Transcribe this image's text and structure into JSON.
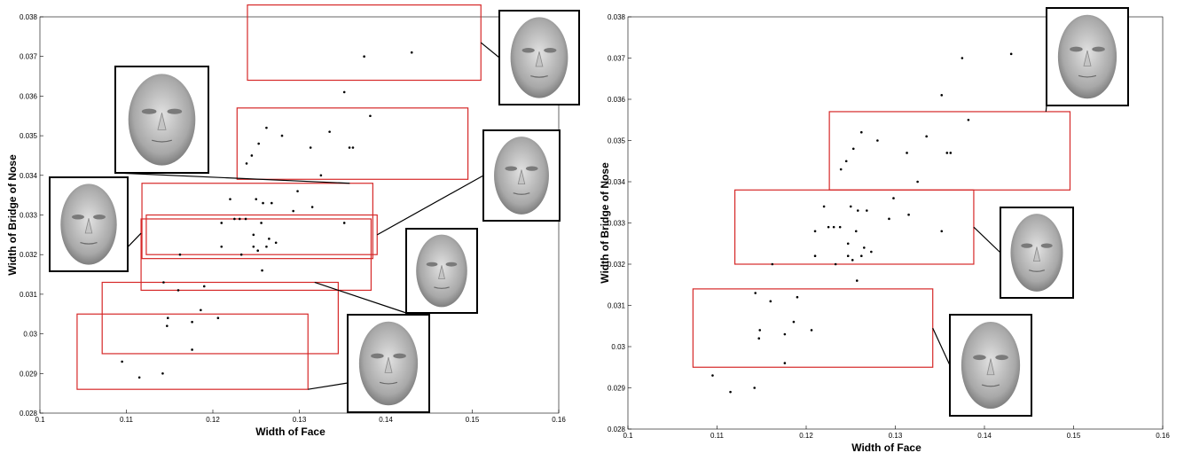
{
  "colors": {
    "frame": "#000000",
    "highlight_box": "#d62828",
    "point": "#000000",
    "face_bg": "#ffffff",
    "face_skin": "#a8a8a8"
  },
  "chart_data": [
    {
      "type": "scatter",
      "title": "",
      "xlabel": "Width of Face",
      "ylabel": "Width of Bridge of Nose",
      "xlim": [
        0.1,
        0.16
      ],
      "ylim": [
        0.028,
        0.038
      ],
      "x_ticks": [
        "0.1",
        "0.11",
        "0.12",
        "0.13",
        "0.14",
        "0.15",
        "0.16"
      ],
      "y_ticks": [
        "0.028",
        "0.029",
        "0.03",
        "0.031",
        "0.032",
        "0.033",
        "0.034",
        "0.035",
        "0.036",
        "0.037",
        "0.038"
      ],
      "grid": false,
      "points": [
        [
          0.1095,
          0.0293
        ],
        [
          0.1115,
          0.0289
        ],
        [
          0.1142,
          0.029
        ],
        [
          0.1143,
          0.0313
        ],
        [
          0.1148,
          0.0304
        ],
        [
          0.1147,
          0.0302
        ],
        [
          0.116,
          0.0311
        ],
        [
          0.1176,
          0.0296
        ],
        [
          0.1176,
          0.0303
        ],
        [
          0.1186,
          0.0306
        ],
        [
          0.119,
          0.0312
        ],
        [
          0.1206,
          0.0304
        ],
        [
          0.1162,
          0.032
        ],
        [
          0.121,
          0.0328
        ],
        [
          0.121,
          0.0322
        ],
        [
          0.122,
          0.0334
        ],
        [
          0.1225,
          0.0329
        ],
        [
          0.1231,
          0.0329
        ],
        [
          0.1233,
          0.032
        ],
        [
          0.1238,
          0.0329
        ],
        [
          0.1247,
          0.0325
        ],
        [
          0.1247,
          0.0322
        ],
        [
          0.125,
          0.0334
        ],
        [
          0.1252,
          0.0321
        ],
        [
          0.1256,
          0.0328
        ],
        [
          0.1258,
          0.0333
        ],
        [
          0.1257,
          0.0316
        ],
        [
          0.1262,
          0.0322
        ],
        [
          0.1265,
          0.0324
        ],
        [
          0.1268,
          0.0333
        ],
        [
          0.1273,
          0.0323
        ],
        [
          0.1293,
          0.0331
        ],
        [
          0.1298,
          0.0336
        ],
        [
          0.1315,
          0.0332
        ],
        [
          0.1352,
          0.0328
        ],
        [
          0.1239,
          0.0343
        ],
        [
          0.1245,
          0.0345
        ],
        [
          0.1253,
          0.0348
        ],
        [
          0.1262,
          0.0352
        ],
        [
          0.128,
          0.035
        ],
        [
          0.1313,
          0.0347
        ],
        [
          0.1325,
          0.034
        ],
        [
          0.1335,
          0.0351
        ],
        [
          0.1358,
          0.0347
        ],
        [
          0.1362,
          0.0347
        ],
        [
          0.1382,
          0.0355
        ],
        [
          0.1352,
          0.0361
        ],
        [
          0.1375,
          0.037
        ],
        [
          0.143,
          0.0371
        ]
      ],
      "highlight_boxes": [
        {
          "x": [
            0.1043,
            0.131
          ],
          "y": [
            0.0286,
            0.0305
          ]
        },
        {
          "x": [
            0.1072,
            0.1345
          ],
          "y": [
            0.0295,
            0.0313
          ]
        },
        {
          "x": [
            0.1117,
            0.1383
          ],
          "y": [
            0.0311,
            0.0329
          ]
        },
        {
          "x": [
            0.1118,
            0.1385
          ],
          "y": [
            0.0319,
            0.0338
          ]
        },
        {
          "x": [
            0.1123,
            0.139
          ],
          "y": [
            0.032,
            0.033
          ]
        },
        {
          "x": [
            0.1228,
            0.1495
          ],
          "y": [
            0.0339,
            0.0357
          ]
        },
        {
          "x": [
            0.124,
            0.151
          ],
          "y": [
            0.0364,
            0.0383
          ]
        }
      ],
      "face_thumbnails": [
        {
          "icon": "face-render-icon",
          "box": 0
        },
        {
          "icon": "face-render-icon",
          "box": 1
        },
        {
          "icon": "face-render-icon",
          "box": 2
        },
        {
          "icon": "face-render-icon",
          "box": 3
        },
        {
          "icon": "face-render-icon",
          "box": 4
        },
        {
          "icon": "face-render-icon",
          "box": 5
        },
        {
          "icon": "face-render-icon",
          "box": 6
        }
      ]
    },
    {
      "type": "scatter",
      "title": "",
      "xlabel": "Width of Face",
      "ylabel": "Width of Bridge of Nose",
      "xlim": [
        0.1,
        0.16
      ],
      "ylim": [
        0.028,
        0.038
      ],
      "x_ticks": [
        "0.1",
        "0.11",
        "0.12",
        "0.13",
        "0.14",
        "0.15",
        "0.16"
      ],
      "y_ticks": [
        "0.028",
        "0.029",
        "0.03",
        "0.031",
        "0.032",
        "0.033",
        "0.034",
        "0.035",
        "0.036",
        "0.037",
        "0.038"
      ],
      "grid": false,
      "points": [
        [
          0.1095,
          0.0293
        ],
        [
          0.1115,
          0.0289
        ],
        [
          0.1142,
          0.029
        ],
        [
          0.1143,
          0.0313
        ],
        [
          0.1148,
          0.0304
        ],
        [
          0.1147,
          0.0302
        ],
        [
          0.116,
          0.0311
        ],
        [
          0.1176,
          0.0296
        ],
        [
          0.1176,
          0.0303
        ],
        [
          0.1186,
          0.0306
        ],
        [
          0.119,
          0.0312
        ],
        [
          0.1206,
          0.0304
        ],
        [
          0.1162,
          0.032
        ],
        [
          0.121,
          0.0328
        ],
        [
          0.121,
          0.0322
        ],
        [
          0.122,
          0.0334
        ],
        [
          0.1225,
          0.0329
        ],
        [
          0.1231,
          0.0329
        ],
        [
          0.1233,
          0.032
        ],
        [
          0.1238,
          0.0329
        ],
        [
          0.1247,
          0.0325
        ],
        [
          0.1247,
          0.0322
        ],
        [
          0.125,
          0.0334
        ],
        [
          0.1252,
          0.0321
        ],
        [
          0.1256,
          0.0328
        ],
        [
          0.1258,
          0.0333
        ],
        [
          0.1257,
          0.0316
        ],
        [
          0.1262,
          0.0322
        ],
        [
          0.1265,
          0.0324
        ],
        [
          0.1268,
          0.0333
        ],
        [
          0.1273,
          0.0323
        ],
        [
          0.1293,
          0.0331
        ],
        [
          0.1298,
          0.0336
        ],
        [
          0.1315,
          0.0332
        ],
        [
          0.1352,
          0.0328
        ],
        [
          0.1239,
          0.0343
        ],
        [
          0.1245,
          0.0345
        ],
        [
          0.1253,
          0.0348
        ],
        [
          0.1262,
          0.0352
        ],
        [
          0.128,
          0.035
        ],
        [
          0.1313,
          0.0347
        ],
        [
          0.1325,
          0.034
        ],
        [
          0.1335,
          0.0351
        ],
        [
          0.1358,
          0.0347
        ],
        [
          0.1362,
          0.0347
        ],
        [
          0.1382,
          0.0355
        ],
        [
          0.1352,
          0.0361
        ],
        [
          0.1375,
          0.037
        ],
        [
          0.143,
          0.0371
        ]
      ],
      "highlight_boxes": [
        {
          "x": [
            0.1073,
            0.1342
          ],
          "y": [
            0.0295,
            0.0314
          ]
        },
        {
          "x": [
            0.112,
            0.1388
          ],
          "y": [
            0.032,
            0.0338
          ]
        },
        {
          "x": [
            0.1226,
            0.1496
          ],
          "y": [
            0.0338,
            0.0357
          ]
        }
      ],
      "face_thumbnails": [
        {
          "icon": "face-render-icon",
          "box": 0
        },
        {
          "icon": "face-render-icon",
          "box": 1
        },
        {
          "icon": "face-render-icon",
          "box": 2
        }
      ]
    }
  ]
}
